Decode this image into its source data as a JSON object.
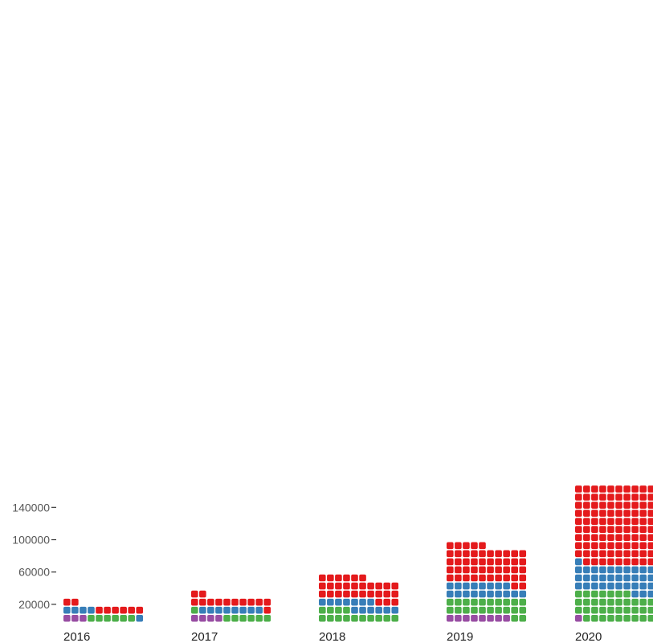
{
  "chart_data": {
    "type": "waffle",
    "x": [
      "2016",
      "2017",
      "2018",
      "2019",
      "2020"
    ],
    "y_ticks": [
      "20000",
      "60000",
      "100000",
      "140000"
    ],
    "units_per_square": 1000,
    "grid_columns": 10,
    "series": [
      {
        "color": "#984EA3",
        "values": [
          3000,
          4000,
          0,
          8000,
          1000
        ]
      },
      {
        "color": "#4DAF4A",
        "values": [
          6000,
          7000,
          14000,
          22000,
          36000
        ]
      },
      {
        "color": "#377EB8",
        "values": [
          5000,
          8000,
          13000,
          18000,
          34000
        ]
      },
      {
        "color": "#E41A1C",
        "values": [
          8000,
          13000,
          29000,
          47000,
          99000
        ]
      }
    ],
    "totals": [
      22000,
      32000,
      56000,
      95000,
      170000
    ],
    "grid": false,
    "legend": "none"
  }
}
